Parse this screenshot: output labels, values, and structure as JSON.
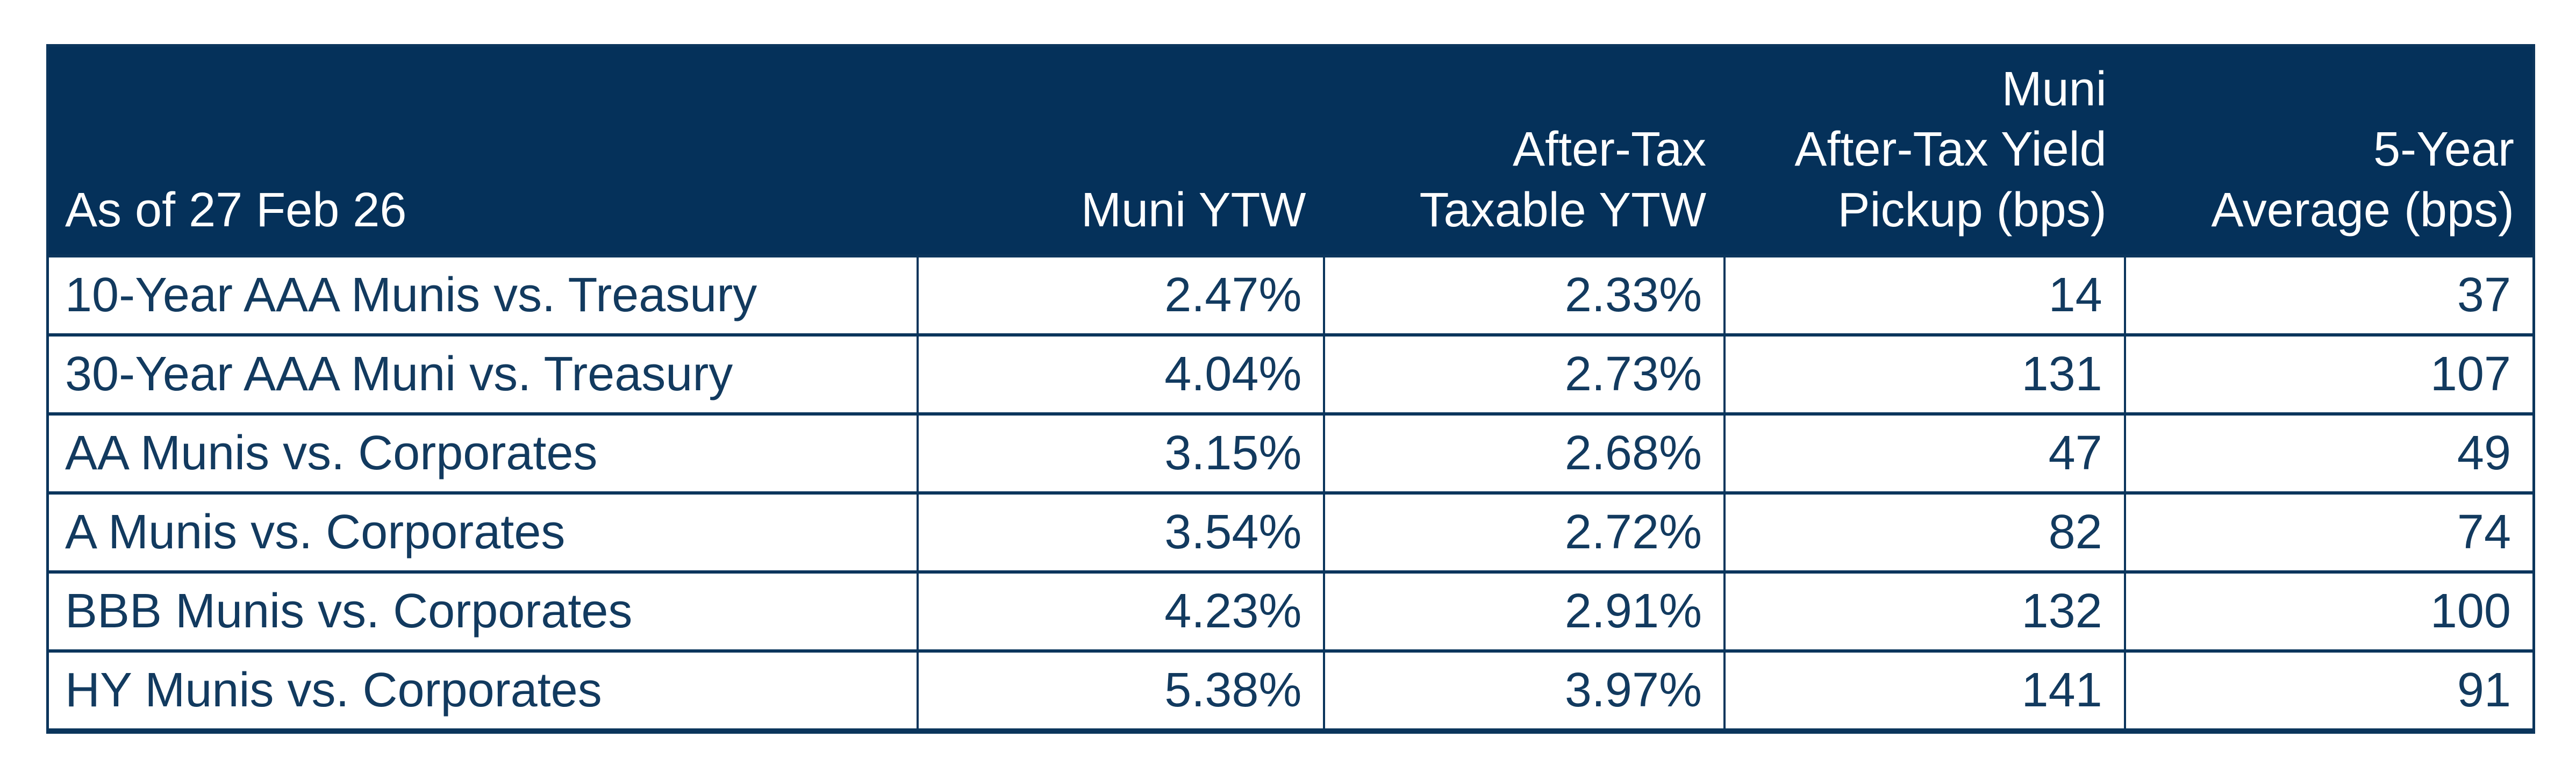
{
  "chart_data": {
    "type": "table",
    "title": "Muni yield comparison table",
    "columns": [
      "As of 27 Feb 26",
      "Muni YTW",
      "After-Tax Taxable YTW",
      "Muni After-Tax Yield Pickup (bps)",
      "5-Year Average (bps)"
    ],
    "rows": [
      [
        "10-Year AAA Munis vs. Treasury",
        "2.47%",
        "2.33%",
        "14",
        "37"
      ],
      [
        "30-Year AAA Muni vs. Treasury",
        "4.04%",
        "2.73%",
        "131",
        "107"
      ],
      [
        "AA Munis vs. Corporates",
        "3.15%",
        "2.68%",
        "47",
        "49"
      ],
      [
        "A Munis vs. Corporates",
        "3.54%",
        "2.72%",
        "82",
        "74"
      ],
      [
        "BBB Munis vs. Corporates",
        "4.23%",
        "2.91%",
        "132",
        "100"
      ],
      [
        "HY Munis vs. Corporates",
        "5.38%",
        "3.97%",
        "141",
        "91"
      ]
    ],
    "layout": {
      "header_background": "#05315A",
      "header_text_color": "#FFFFFF",
      "body_text_color": "#123A5F",
      "border_color": "#0B355C",
      "grid": "on",
      "first_column_align": "left",
      "value_columns_align": "right"
    }
  },
  "display": {
    "headers": [
      "As of 27 Feb 26",
      "Muni YTW",
      "After-Tax\nTaxable YTW",
      "Muni\nAfter-Tax Yield\nPickup (bps)",
      "5-Year\nAverage (bps)"
    ]
  },
  "colors": {
    "header_bg": "#05315A",
    "header_text": "#FFFFFF",
    "body_text": "#123A5F",
    "border": "#0B355C",
    "page_background": "#FFFFFF"
  }
}
